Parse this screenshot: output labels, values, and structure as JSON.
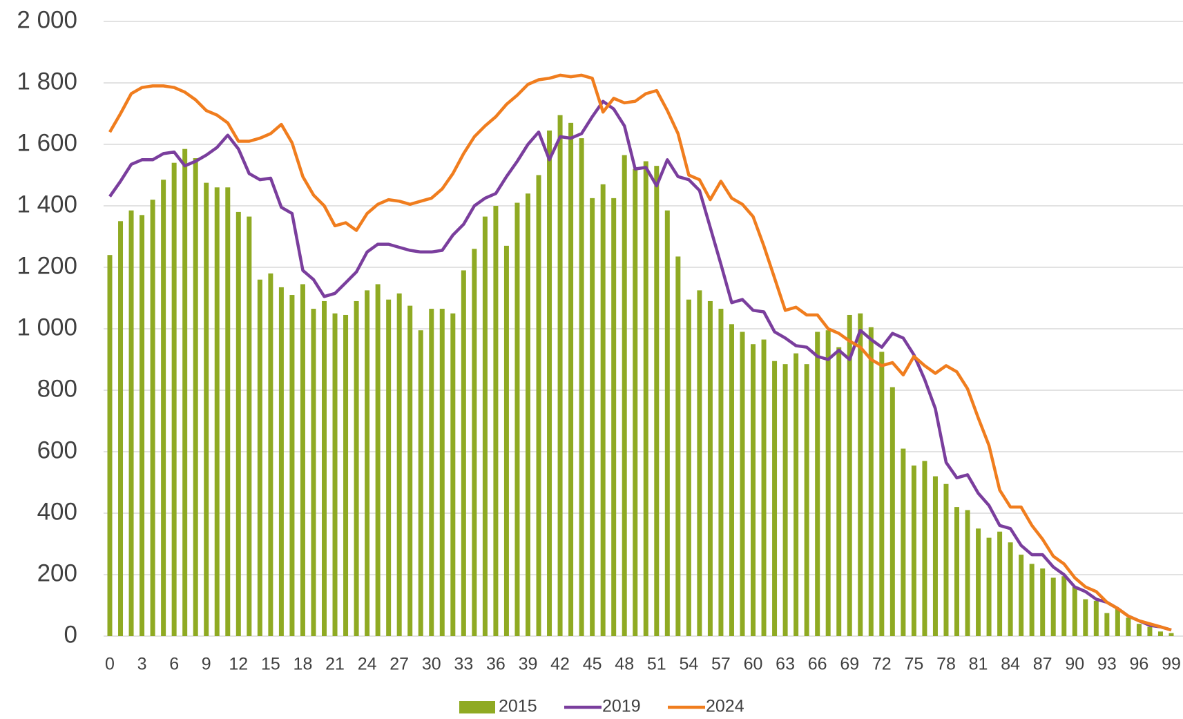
{
  "chart_data": {
    "type": "bar-line",
    "categories": [
      "0",
      null,
      null,
      "3",
      null,
      null,
      "6",
      null,
      null,
      "9",
      null,
      null,
      "12",
      null,
      null,
      "15",
      null,
      null,
      "18",
      null,
      null,
      "21",
      null,
      null,
      "24",
      null,
      null,
      "27",
      null,
      null,
      "30",
      null,
      null,
      "33",
      null,
      null,
      "36",
      null,
      null,
      "39",
      null,
      null,
      "42",
      null,
      null,
      "45",
      null,
      null,
      "48",
      null,
      null,
      "51",
      null,
      null,
      "54",
      null,
      null,
      "57",
      null,
      null,
      "60",
      null,
      null,
      "63",
      null,
      null,
      "66",
      null,
      null,
      "69",
      null,
      null,
      "72",
      null,
      null,
      "75",
      null,
      null,
      "78",
      null,
      null,
      "81",
      null,
      null,
      "84",
      null,
      null,
      "87",
      null,
      null,
      "90",
      null,
      null,
      "93",
      null,
      null,
      "96",
      null,
      null,
      "99"
    ],
    "series": [
      {
        "name": "2015",
        "type": "bar",
        "color": "#8faa23",
        "values": [
          1240,
          1350,
          1385,
          1370,
          1420,
          1485,
          1540,
          1585,
          1555,
          1475,
          1460,
          1460,
          1380,
          1365,
          1160,
          1180,
          1135,
          1110,
          1145,
          1065,
          1090,
          1050,
          1045,
          1090,
          1125,
          1145,
          1095,
          1115,
          1075,
          995,
          1065,
          1065,
          1050,
          1190,
          1260,
          1365,
          1400,
          1270,
          1410,
          1440,
          1500,
          1645,
          1695,
          1670,
          1620,
          1425,
          1470,
          1425,
          1565,
          1520,
          1545,
          1530,
          1385,
          1235,
          1095,
          1125,
          1090,
          1065,
          1015,
          990,
          950,
          965,
          895,
          885,
          920,
          885,
          990,
          995,
          940,
          1045,
          1050,
          1005,
          925,
          810,
          610,
          555,
          570,
          520,
          495,
          420,
          410,
          350,
          320,
          340,
          305,
          265,
          235,
          220,
          190,
          195,
          160,
          120,
          115,
          75,
          90,
          60,
          40,
          30,
          15,
          10
        ]
      },
      {
        "name": "2019",
        "type": "line",
        "color": "#7a3e9d",
        "values": [
          1430,
          1480,
          1535,
          1550,
          1550,
          1570,
          1575,
          1530,
          1545,
          1565,
          1590,
          1630,
          1585,
          1505,
          1485,
          1490,
          1395,
          1375,
          1190,
          1160,
          1105,
          1115,
          1150,
          1185,
          1250,
          1275,
          1275,
          1265,
          1255,
          1250,
          1250,
          1255,
          1305,
          1340,
          1400,
          1425,
          1440,
          1495,
          1545,
          1600,
          1640,
          1550,
          1625,
          1620,
          1635,
          1690,
          1740,
          1715,
          1660,
          1520,
          1525,
          1465,
          1550,
          1495,
          1485,
          1450,
          1330,
          1210,
          1085,
          1095,
          1060,
          1055,
          990,
          970,
          945,
          940,
          910,
          900,
          930,
          900,
          995,
          965,
          940,
          985,
          970,
          915,
          835,
          740,
          565,
          515,
          525,
          465,
          425,
          360,
          350,
          295,
          265,
          265,
          225,
          200,
          160,
          145,
          120,
          110,
          90,
          65,
          50,
          35,
          30,
          20
        ]
      },
      {
        "name": "2024",
        "type": "line",
        "color": "#f07d1e",
        "values": [
          1640,
          1700,
          1765,
          1785,
          1790,
          1790,
          1785,
          1770,
          1745,
          1710,
          1695,
          1670,
          1610,
          1610,
          1620,
          1635,
          1665,
          1605,
          1495,
          1435,
          1400,
          1335,
          1345,
          1320,
          1375,
          1405,
          1420,
          1415,
          1405,
          1415,
          1425,
          1455,
          1505,
          1570,
          1625,
          1660,
          1690,
          1730,
          1760,
          1795,
          1810,
          1815,
          1825,
          1820,
          1825,
          1815,
          1705,
          1750,
          1735,
          1740,
          1765,
          1775,
          1710,
          1635,
          1500,
          1485,
          1420,
          1480,
          1425,
          1405,
          1365,
          1270,
          1165,
          1060,
          1070,
          1045,
          1045,
          1000,
          985,
          960,
          940,
          900,
          880,
          890,
          850,
          910,
          880,
          855,
          880,
          860,
          805,
          710,
          620,
          475,
          420,
          420,
          360,
          315,
          260,
          235,
          190,
          160,
          145,
          110,
          90,
          65,
          50,
          40,
          30,
          20
        ]
      }
    ],
    "ylim": [
      0,
      2000
    ],
    "yticks": [
      0,
      200,
      400,
      600,
      800,
      {
        "value": 1000,
        "label": "1 000"
      },
      {
        "value": 1200,
        "label": "1 200"
      },
      {
        "value": 1400,
        "label": "1 400"
      },
      {
        "value": 1600,
        "label": "1 600"
      },
      {
        "value": 1800,
        "label": "1 800"
      },
      {
        "value": 2000,
        "label": "2 000"
      }
    ],
    "grid": true,
    "legend": "bottom"
  }
}
